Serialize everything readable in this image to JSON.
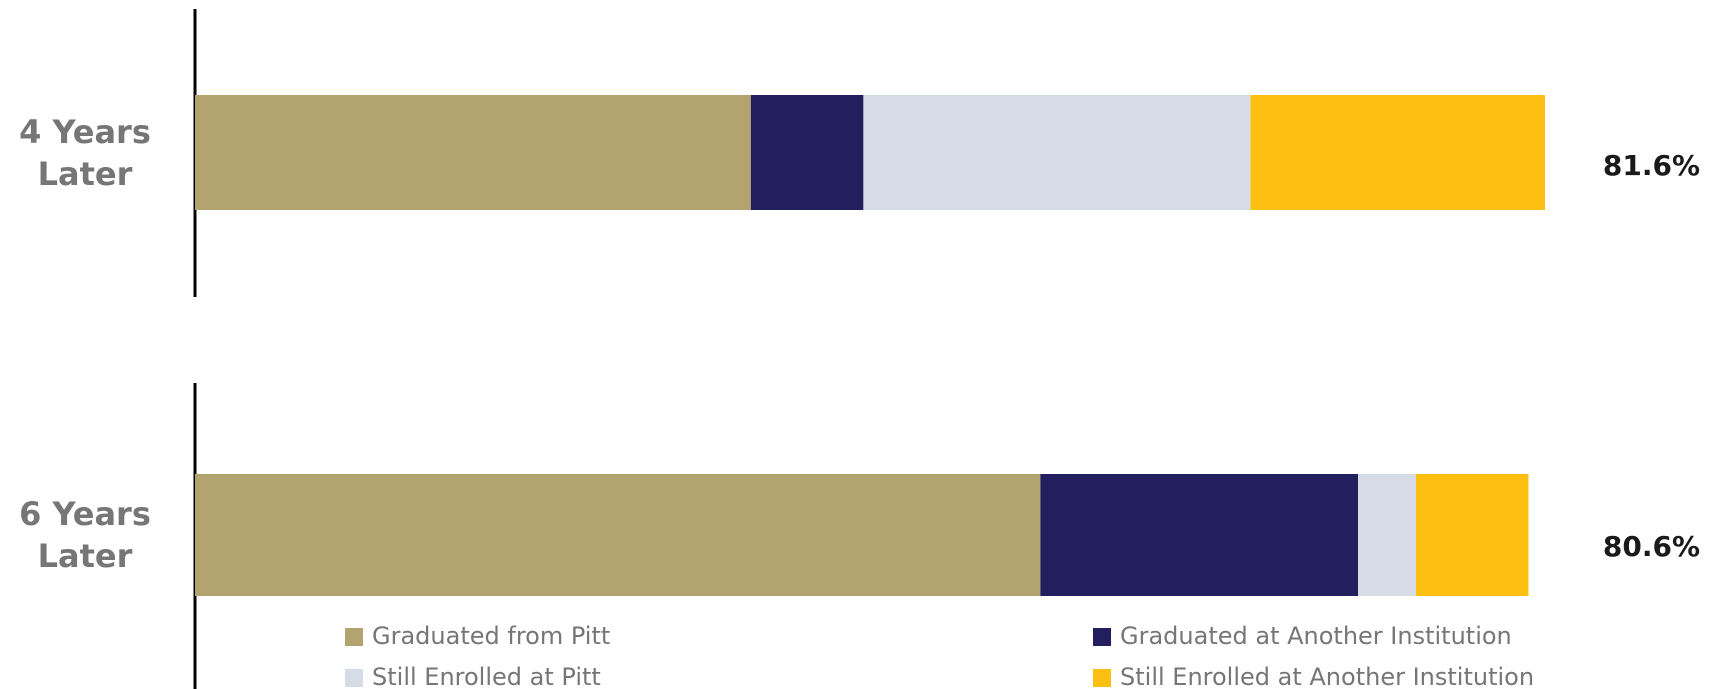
{
  "chart_data": {
    "type": "stacked-bar-horizontal",
    "categories": [
      "4 Years Later",
      "6 Years Later"
    ],
    "series": [
      {
        "name": "Graduated from Pitt",
        "color": "#b3a46f",
        "values": [
          33.6,
          51.1
        ]
      },
      {
        "name": "Graduated at Another Institution",
        "color": "#231f5e",
        "values": [
          6.8,
          19.2
        ]
      },
      {
        "name": "Still Enrolled at Pitt",
        "color": "#d6dce6",
        "values": [
          23.4,
          3.5
        ]
      },
      {
        "name": "Still Enrolled at Another Institution",
        "color": "#fcbf12",
        "values": [
          17.8,
          6.8
        ]
      }
    ],
    "total_labels": [
      "81.6%",
      "80.6%"
    ],
    "xlim": [
      0,
      90
    ]
  }
}
